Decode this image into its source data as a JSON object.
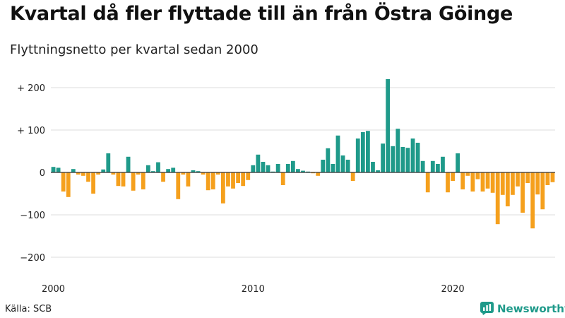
{
  "header": {
    "title": "Kvartal då fler flyttade till än från Östra Göinge",
    "subtitle": "Flyttningsnetto per kvartal sedan 2000"
  },
  "footer": {
    "source": "Källa: SCB",
    "brand": "Newsworthy"
  },
  "colors": {
    "positive": "#1f9a8a",
    "negative": "#f5a01d",
    "grid": "#dcdcdc",
    "zero_line": "#333333",
    "brand": "#1f9a8a"
  },
  "chart_data": {
    "type": "bar",
    "title": "Kvartal då fler flyttade till än från Östra Göinge",
    "subtitle": "Flyttningsnetto per kvartal sedan 2000",
    "xlabel": "",
    "ylabel": "",
    "start_period": "2000-Q1",
    "x_ticks": [
      {
        "label": "2000",
        "year": 2000
      },
      {
        "label": "2010",
        "year": 2010
      },
      {
        "label": "2020",
        "year": 2020
      }
    ],
    "y_ticks": [
      {
        "label": "+ 200",
        "value": 200
      },
      {
        "label": "+ 100",
        "value": 100
      },
      {
        "label": "0",
        "value": 0
      },
      {
        "label": "−100",
        "value": -100
      },
      {
        "label": "−200",
        "value": -200
      }
    ],
    "ylim": [
      -220,
      230
    ],
    "grid": true,
    "values": [
      13,
      11,
      -45,
      -58,
      8,
      -5,
      -8,
      -22,
      -50,
      -5,
      7,
      45,
      -5,
      -32,
      -33,
      37,
      -43,
      -5,
      -40,
      17,
      3,
      24,
      -22,
      8,
      11,
      -63,
      -5,
      -33,
      5,
      3,
      -5,
      -42,
      -40,
      -5,
      -73,
      -33,
      -38,
      -25,
      -32,
      -18,
      17,
      42,
      25,
      17,
      2,
      20,
      -30,
      20,
      27,
      8,
      4,
      2,
      -2,
      -8,
      30,
      57,
      20,
      87,
      40,
      30,
      -20,
      80,
      95,
      98,
      25,
      5,
      68,
      220,
      62,
      103,
      60,
      58,
      80,
      70,
      27,
      -47,
      27,
      20,
      37,
      -47,
      -20,
      45,
      -40,
      -8,
      -45,
      -16,
      -45,
      -38,
      -48,
      -122,
      -53,
      -80,
      -53,
      -33,
      -95,
      -25,
      -132,
      -52,
      -87,
      -30,
      -23
    ]
  }
}
